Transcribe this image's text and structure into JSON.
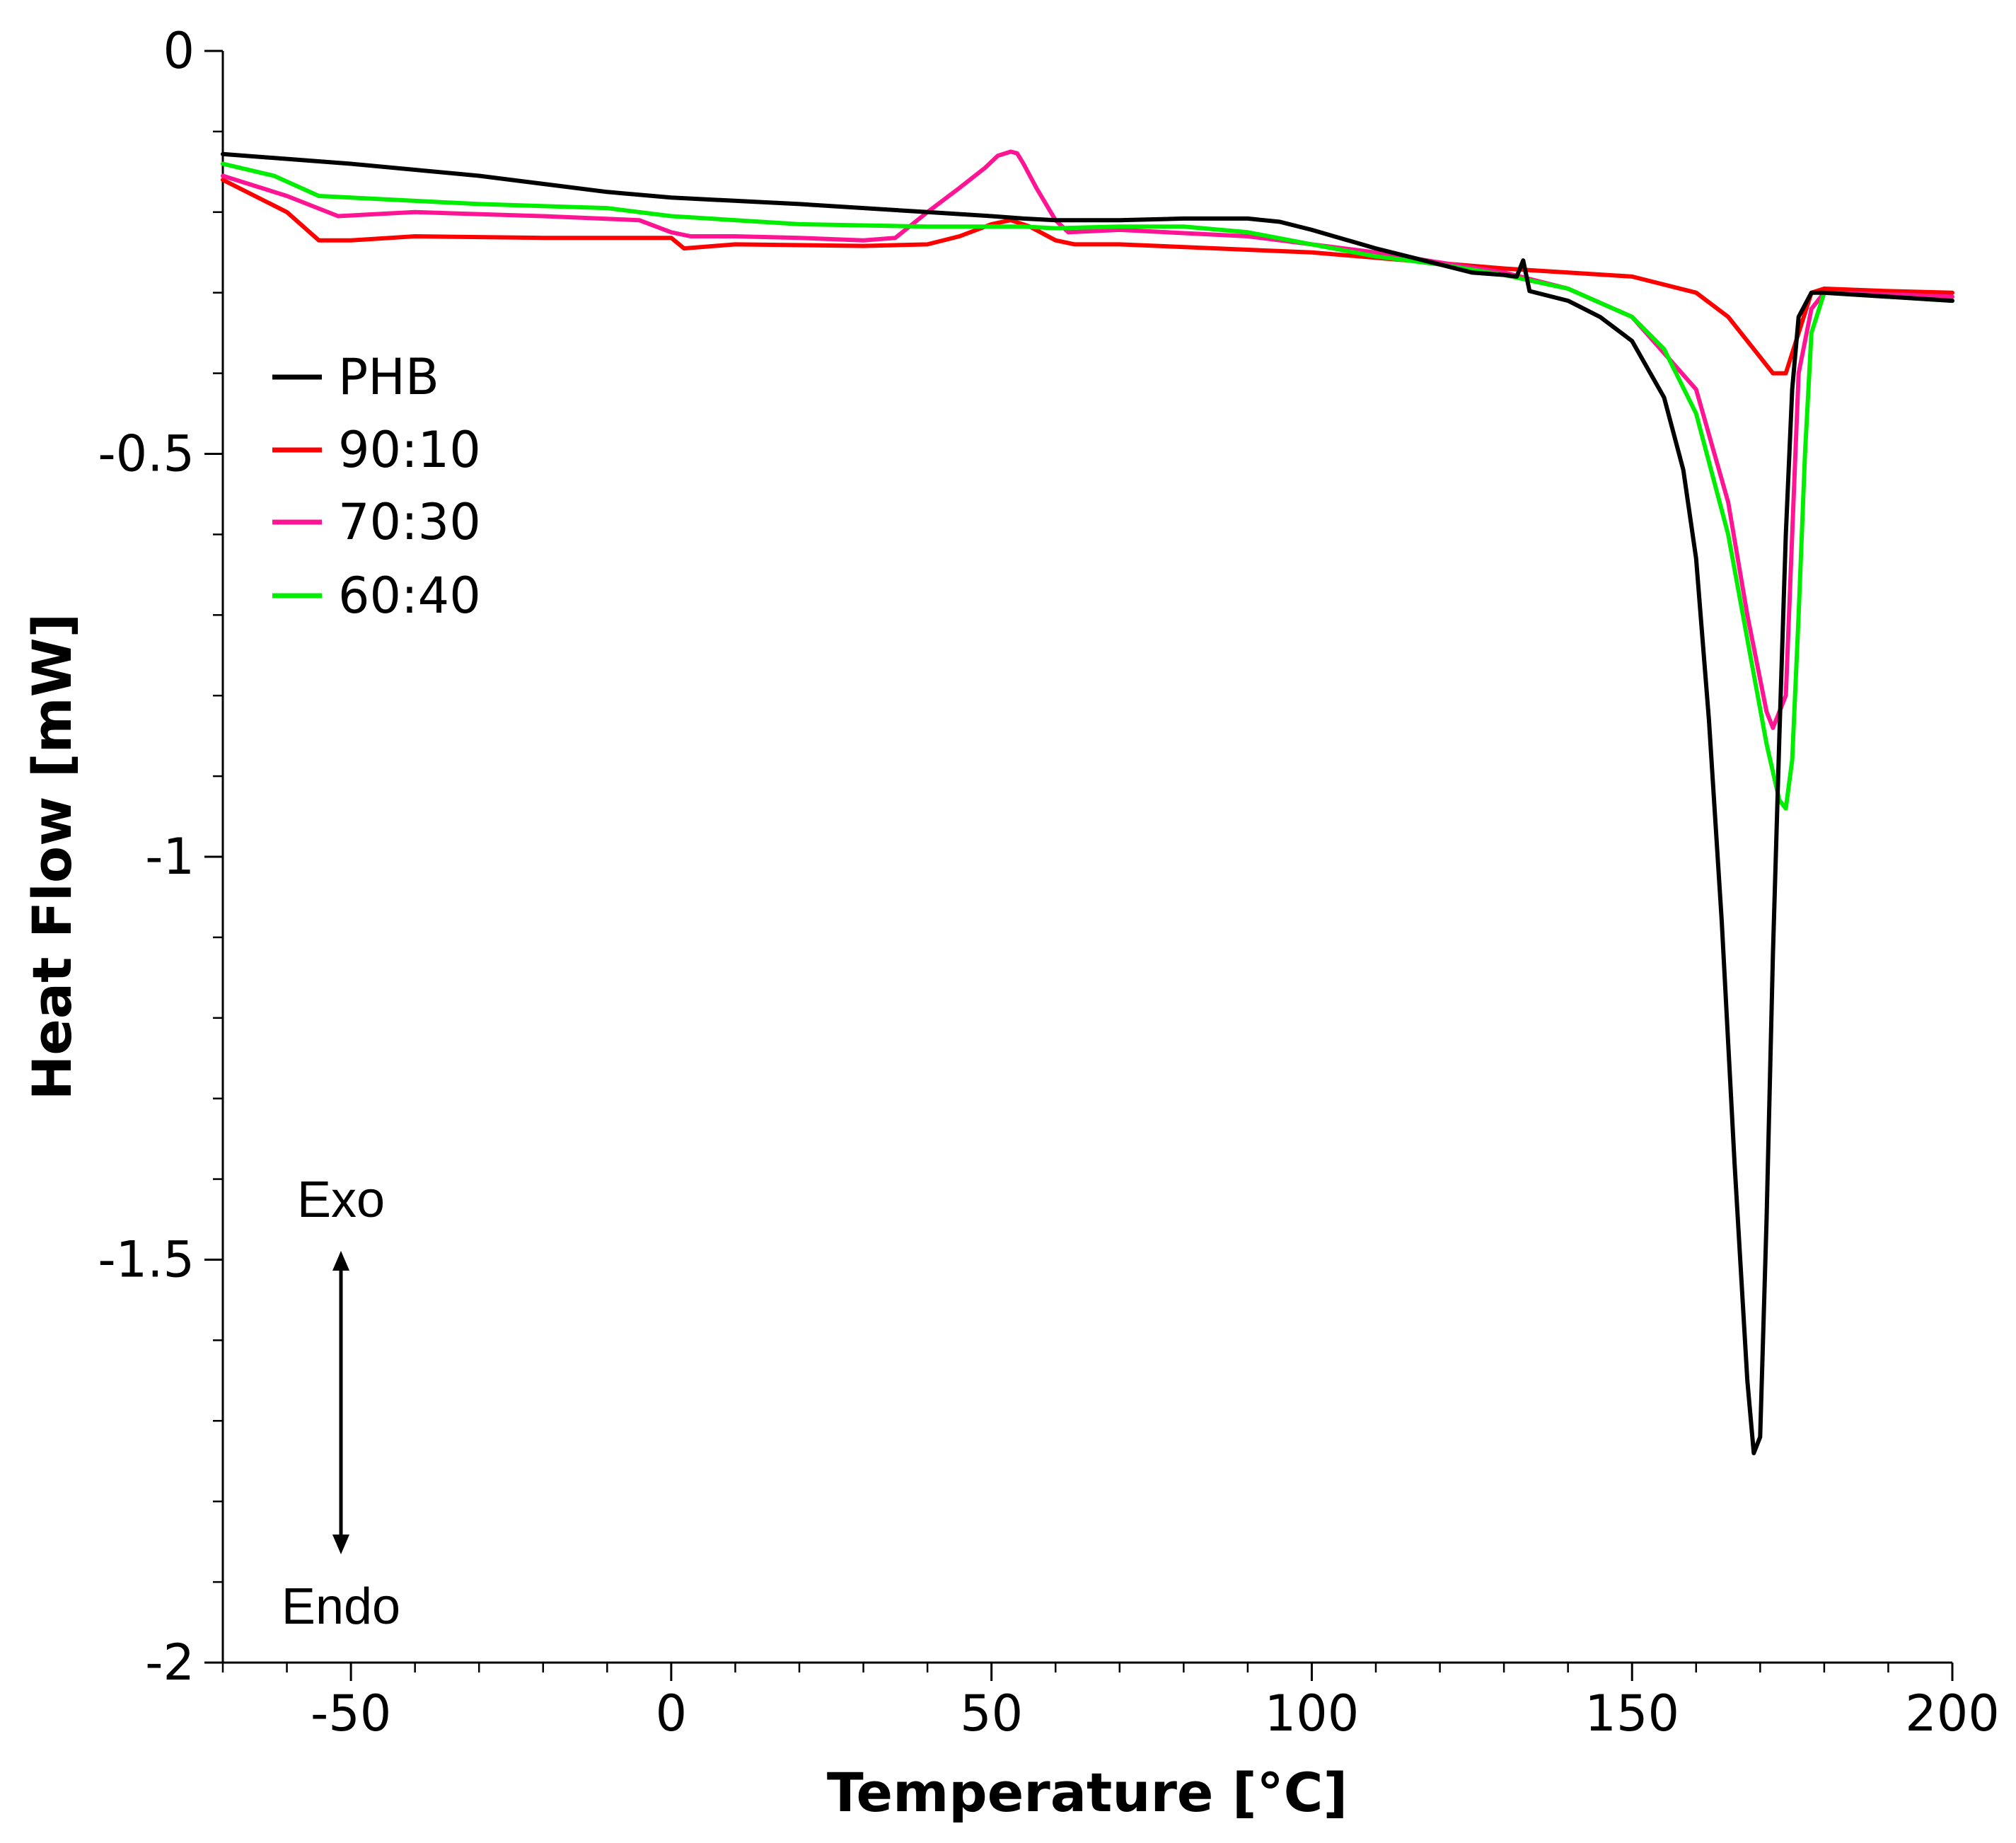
{
  "chart_data": {
    "type": "line",
    "title": "",
    "xlabel": "Temperature [°C]",
    "ylabel": "Heat Flow [mW]",
    "xlim": [
      -70,
      200
    ],
    "ylim": [
      -2,
      0
    ],
    "x_ticks": [
      -50,
      0,
      50,
      100,
      150,
      200
    ],
    "x_tick_labels": [
      "-50",
      "0",
      "50",
      "100",
      "150",
      "200"
    ],
    "x_minor_step": 10,
    "y_ticks": [
      0,
      -0.5,
      -1,
      -1.5,
      -2
    ],
    "y_tick_labels": [
      "0",
      "-0.5",
      "-1",
      "-1.5",
      "-2"
    ],
    "y_minor_step": 0.1,
    "grid": false,
    "legend_position": "upper-left",
    "annotations": {
      "exo": "Exo",
      "endo": "Endo"
    },
    "series": [
      {
        "name": "PHB",
        "color": "#000000",
        "x": [
          -70,
          -50,
          -30,
          -10,
          0,
          20,
          40,
          50,
          55,
          60,
          70,
          80,
          90,
          95,
          100,
          110,
          120,
          125,
          130,
          132,
          133,
          134,
          140,
          145,
          150,
          155,
          158,
          160,
          162,
          164,
          166,
          168,
          169,
          170,
          171,
          172,
          173,
          174,
          175,
          176,
          178,
          180,
          190,
          200
        ],
        "y": [
          -0.128,
          -0.14,
          -0.155,
          -0.175,
          -0.182,
          -0.19,
          -0.2,
          -0.205,
          -0.208,
          -0.21,
          -0.21,
          -0.208,
          -0.208,
          -0.212,
          -0.222,
          -0.245,
          -0.265,
          -0.275,
          -0.278,
          -0.28,
          -0.26,
          -0.298,
          -0.31,
          -0.33,
          -0.36,
          -0.43,
          -0.52,
          -0.63,
          -0.83,
          -1.08,
          -1.38,
          -1.65,
          -1.74,
          -1.72,
          -1.45,
          -1.12,
          -0.85,
          -0.6,
          -0.42,
          -0.33,
          -0.3,
          -0.3,
          -0.305,
          -0.31
        ]
      },
      {
        "name": "90:10",
        "color": "#ff0000",
        "x": [
          -70,
          -60,
          -55,
          -50,
          -40,
          -20,
          0,
          2,
          10,
          30,
          40,
          45,
          50,
          53,
          56,
          60,
          63,
          70,
          100,
          130,
          150,
          160,
          165,
          170,
          172,
          174,
          176,
          178,
          180,
          190,
          200
        ],
        "y": [
          -0.16,
          -0.2,
          -0.235,
          -0.235,
          -0.23,
          -0.232,
          -0.232,
          -0.245,
          -0.24,
          -0.242,
          -0.24,
          -0.23,
          -0.215,
          -0.21,
          -0.218,
          -0.235,
          -0.24,
          -0.24,
          -0.25,
          -0.27,
          -0.28,
          -0.3,
          -0.33,
          -0.38,
          -0.4,
          -0.4,
          -0.35,
          -0.3,
          -0.295,
          -0.298,
          -0.3
        ]
      },
      {
        "name": "70:30",
        "color": "#ff1493",
        "x": [
          -70,
          -60,
          -52,
          -40,
          -20,
          -5,
          0,
          3,
          10,
          20,
          30,
          35,
          40,
          45,
          49,
          51,
          53,
          54,
          55,
          57,
          60,
          62,
          70,
          90,
          110,
          130,
          140,
          150,
          160,
          165,
          168,
          171,
          172,
          174,
          175,
          176,
          178,
          180,
          190,
          200
        ],
        "y": [
          -0.155,
          -0.18,
          -0.205,
          -0.2,
          -0.205,
          -0.21,
          -0.225,
          -0.23,
          -0.23,
          -0.232,
          -0.235,
          -0.232,
          -0.2,
          -0.17,
          -0.145,
          -0.13,
          -0.125,
          -0.127,
          -0.14,
          -0.17,
          -0.21,
          -0.225,
          -0.222,
          -0.23,
          -0.25,
          -0.275,
          -0.295,
          -0.33,
          -0.42,
          -0.56,
          -0.7,
          -0.82,
          -0.84,
          -0.8,
          -0.6,
          -0.4,
          -0.32,
          -0.3,
          -0.302,
          -0.305
        ]
      },
      {
        "name": "60:40",
        "color": "#00ee00",
        "x": [
          -70,
          -62,
          -55,
          -50,
          -30,
          -10,
          0,
          20,
          40,
          50,
          55,
          60,
          70,
          80,
          90,
          100,
          110,
          120,
          130,
          140,
          150,
          155,
          160,
          165,
          168,
          171,
          173,
          174,
          175,
          176,
          177,
          178,
          180,
          190,
          200
        ],
        "y": [
          -0.14,
          -0.155,
          -0.18,
          -0.182,
          -0.19,
          -0.195,
          -0.205,
          -0.215,
          -0.218,
          -0.218,
          -0.218,
          -0.22,
          -0.218,
          -0.218,
          -0.225,
          -0.24,
          -0.255,
          -0.265,
          -0.278,
          -0.295,
          -0.33,
          -0.37,
          -0.45,
          -0.6,
          -0.73,
          -0.86,
          -0.93,
          -0.94,
          -0.88,
          -0.7,
          -0.5,
          -0.35,
          -0.3,
          -0.305,
          -0.31
        ]
      }
    ]
  }
}
